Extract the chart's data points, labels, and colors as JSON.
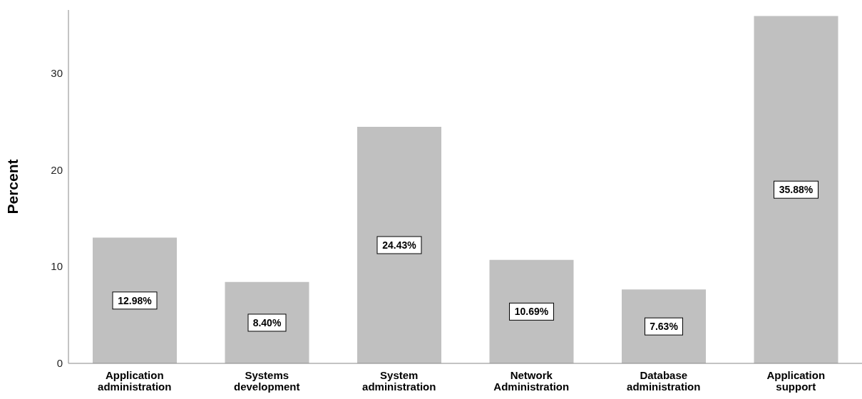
{
  "chart_data": {
    "type": "bar",
    "ylabel": "Percent",
    "categories": [
      "Application administration",
      "Systems development",
      "System administration",
      "Network Administration",
      "Database administration",
      "Application support"
    ],
    "values": [
      12.98,
      8.4,
      24.43,
      10.69,
      7.63,
      35.88
    ],
    "value_labels": [
      "12.98%",
      "8.40%",
      "24.43%",
      "10.69%",
      "7.63%",
      "35.88%"
    ],
    "color": "#c0c0c0",
    "ylim": [
      0,
      36.5
    ],
    "yticks": [
      0,
      10,
      20,
      30
    ],
    "grid": false
  }
}
